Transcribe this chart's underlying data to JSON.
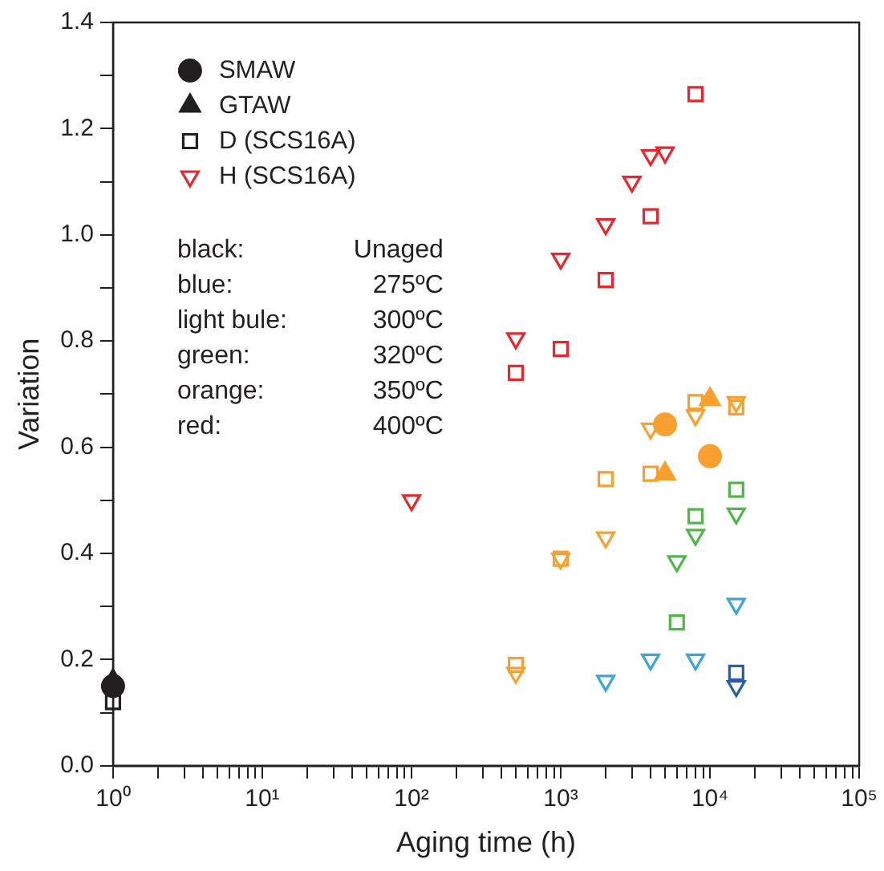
{
  "chart_data": {
    "type": "scatter",
    "xlabel": "Aging time (h)",
    "ylabel": "Variation",
    "log": "x",
    "grid": false,
    "legend": "top left",
    "xlim": [
      1,
      100000
    ],
    "ylim": [
      0,
      1.4
    ],
    "xticks": [
      {
        "value": 1,
        "label": "10⁰"
      },
      {
        "value": 2,
        "label": null
      },
      {
        "value": 3,
        "label": null
      },
      {
        "value": 4,
        "label": null
      },
      {
        "value": 5,
        "label": null
      },
      {
        "value": 6,
        "label": null
      },
      {
        "value": 7,
        "label": null
      },
      {
        "value": 8,
        "label": null
      },
      {
        "value": 9,
        "label": null
      },
      {
        "value": 10,
        "label": "10¹"
      },
      {
        "value": 20,
        "label": null
      },
      {
        "value": 30,
        "label": null
      },
      {
        "value": 40,
        "label": null
      },
      {
        "value": 50,
        "label": null
      },
      {
        "value": 60,
        "label": null
      },
      {
        "value": 70,
        "label": null
      },
      {
        "value": 80,
        "label": null
      },
      {
        "value": 90,
        "label": null
      },
      {
        "value": 100,
        "label": "10²"
      },
      {
        "value": 200,
        "label": null
      },
      {
        "value": 300,
        "label": null
      },
      {
        "value": 400,
        "label": null
      },
      {
        "value": 500,
        "label": null
      },
      {
        "value": 600,
        "label": null
      },
      {
        "value": 700,
        "label": null
      },
      {
        "value": 800,
        "label": null
      },
      {
        "value": 900,
        "label": null
      },
      {
        "value": 1000,
        "label": "10³"
      },
      {
        "value": 2000,
        "label": null
      },
      {
        "value": 3000,
        "label": null
      },
      {
        "value": 4000,
        "label": null
      },
      {
        "value": 5000,
        "label": null
      },
      {
        "value": 6000,
        "label": null
      },
      {
        "value": 7000,
        "label": null
      },
      {
        "value": 8000,
        "label": null
      },
      {
        "value": 9000,
        "label": null
      },
      {
        "value": 10000,
        "label": "10⁴"
      },
      {
        "value": 20000,
        "label": null
      },
      {
        "value": 30000,
        "label": null
      },
      {
        "value": 40000,
        "label": null
      },
      {
        "value": 50000,
        "label": null
      },
      {
        "value": 60000,
        "label": null
      },
      {
        "value": 70000,
        "label": null
      },
      {
        "value": 80000,
        "label": null
      },
      {
        "value": 90000,
        "label": null
      },
      {
        "value": 100000,
        "label": "10⁵"
      }
    ],
    "yticks": [
      {
        "value": 0,
        "label": "0.0"
      },
      {
        "value": 0.1,
        "label": null
      },
      {
        "value": 0.2,
        "label": "0.2"
      },
      {
        "value": 0.3,
        "label": null
      },
      {
        "value": 0.4,
        "label": "0.4"
      },
      {
        "value": 0.5,
        "label": null
      },
      {
        "value": 0.6,
        "label": "0.6"
      },
      {
        "value": 0.7,
        "label": null
      },
      {
        "value": 0.8,
        "label": "0.8"
      },
      {
        "value": 0.9,
        "label": null
      },
      {
        "value": 1,
        "label": "1.0"
      },
      {
        "value": 1.1,
        "label": null
      },
      {
        "value": 1.2,
        "label": "1.2"
      },
      {
        "value": 1.3,
        "label": null
      },
      {
        "value": 1.4,
        "label": "1.4"
      }
    ],
    "series": [
      {
        "name": "SMAW",
        "marker": "circle",
        "color": "#231f20",
        "x": [
          1,
          5000,
          10000
        ],
        "values": [
          0.15,
          0.643,
          0.583
        ],
        "colors": [
          "#231f20",
          "#f7a030",
          "#f7a030"
        ]
      },
      {
        "name": "GTAW",
        "marker": "triangle",
        "color": "#231f20",
        "x": [
          1,
          5000,
          10000
        ],
        "values": [
          0.16,
          0.55,
          0.69
        ],
        "colors": [
          "#231f20",
          "#f7a030",
          "#f7a030"
        ]
      },
      {
        "name": "D (SCS16A)",
        "marker": "square",
        "color": "#231f20",
        "x": [
          1,
          500,
          1000,
          2000,
          4000,
          8000,
          500,
          1000,
          2000,
          4000,
          8000,
          15000,
          6000,
          8000,
          15000,
          15000
        ],
        "values": [
          0.12,
          0.74,
          0.785,
          0.915,
          1.035,
          1.265,
          0.19,
          0.39,
          0.54,
          0.55,
          0.685,
          0.675,
          0.27,
          0.47,
          0.52,
          0.175
        ],
        "colors": [
          "#231f20",
          "#e8262b",
          "#e8262b",
          "#e8262b",
          "#e8262b",
          "#e8262b",
          "#f7a030",
          "#f7a030",
          "#f7a030",
          "#f7a030",
          "#f7a030",
          "#f7a030",
          "#4db848",
          "#4db848",
          "#4db848",
          "#2a5caa"
        ]
      },
      {
        "name": "H (SCS16A)",
        "marker": "triangle-down",
        "x": [
          100,
          500,
          1000,
          2000,
          3000,
          4000,
          5000,
          500,
          1000,
          2000,
          4000,
          8000,
          15000,
          6000,
          8000,
          15000,
          2000,
          4000,
          8000,
          15000,
          15000
        ],
        "values": [
          0.5,
          0.805,
          0.955,
          1.02,
          1.1,
          1.15,
          1.155,
          0.175,
          0.39,
          0.43,
          0.635,
          0.66,
          0.685,
          0.385,
          0.435,
          0.475,
          0.16,
          0.2,
          0.2,
          0.305,
          0.15
        ],
        "colors": [
          "#e8262b",
          "#e8262b",
          "#e8262b",
          "#e8262b",
          "#e8262b",
          "#e8262b",
          "#e8262b",
          "#f7a030",
          "#f7a030",
          "#f7a030",
          "#f7a030",
          "#f7a030",
          "#f7a030",
          "#4db848",
          "#4db848",
          "#4db848",
          "#3aa5dc",
          "#3aa5dc",
          "#3aa5dc",
          "#3aa5dc",
          "#2a5caa"
        ]
      }
    ],
    "annotations": [
      "black:",
      "Unaged",
      "blue:",
      "275ºC",
      "light bule:",
      "300ºC",
      "green:",
      "320ºC",
      "orange:",
      "350ºC",
      "red:",
      "400ºC"
    ]
  }
}
